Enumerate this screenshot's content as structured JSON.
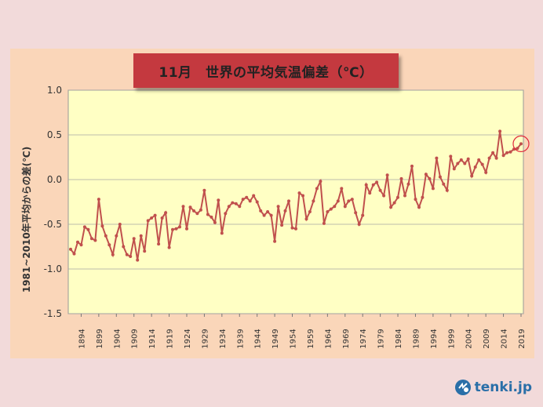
{
  "title": "11月　世界の平均気温偏差（℃）",
  "logo_text": "tenki.jp",
  "colors": {
    "plot_bg": "#ffffc4",
    "line": "#c0504d",
    "grid": "#a6a6a6",
    "highlight": "#e0283c"
  },
  "chart_data": {
    "type": "line",
    "title": "11月　世界の平均気温偏差（℃）",
    "ylabel": "1981~2010年平均からの差(℃)",
    "xlabel": "",
    "ylim": [
      -1.5,
      1.0
    ],
    "yticks": [
      "1.0",
      "0.5",
      "0.0",
      "-0.5",
      "-1.0",
      "-1.5"
    ],
    "xticks": [
      "1894",
      "1899",
      "1904",
      "1909",
      "1914",
      "1919",
      "1924",
      "1929",
      "1934",
      "1939",
      "1944",
      "1949",
      "1954",
      "1959",
      "1964",
      "1969",
      "1974",
      "1979",
      "1984",
      "1989",
      "1994",
      "1999",
      "2004",
      "2009",
      "2014",
      "2019"
    ],
    "grid": true,
    "highlight_year": 2019,
    "x_start": 1891,
    "x_end": 2019,
    "values": [
      -0.78,
      -0.83,
      -0.7,
      -0.73,
      -0.53,
      -0.56,
      -0.66,
      -0.68,
      -0.22,
      -0.52,
      -0.63,
      -0.73,
      -0.84,
      -0.63,
      -0.5,
      -0.75,
      -0.84,
      -0.86,
      -0.66,
      -0.9,
      -0.63,
      -0.8,
      -0.46,
      -0.43,
      -0.4,
      -0.72,
      -0.43,
      -0.37,
      -0.76,
      -0.56,
      -0.55,
      -0.53,
      -0.3,
      -0.55,
      -0.31,
      -0.35,
      -0.38,
      -0.34,
      -0.12,
      -0.39,
      -0.42,
      -0.48,
      -0.23,
      -0.6,
      -0.38,
      -0.3,
      -0.26,
      -0.27,
      -0.3,
      -0.22,
      -0.2,
      -0.24,
      -0.18,
      -0.25,
      -0.35,
      -0.4,
      -0.36,
      -0.4,
      -0.69,
      -0.3,
      -0.51,
      -0.35,
      -0.24,
      -0.54,
      -0.55,
      -0.15,
      -0.18,
      -0.44,
      -0.36,
      -0.24,
      -0.1,
      -0.02,
      -0.49,
      -0.36,
      -0.33,
      -0.3,
      -0.24,
      -0.1,
      -0.3,
      -0.24,
      -0.22,
      -0.37,
      -0.5,
      -0.4,
      -0.06,
      -0.15,
      -0.06,
      -0.03,
      -0.12,
      -0.18,
      0.05,
      -0.31,
      -0.26,
      -0.2,
      0.01,
      -0.18,
      -0.05,
      0.15,
      -0.22,
      -0.31,
      -0.2,
      0.06,
      0.01,
      -0.1,
      0.24,
      0.03,
      -0.05,
      -0.12,
      0.26,
      0.12,
      0.18,
      0.22,
      0.18,
      0.23,
      0.04,
      0.14,
      0.22,
      0.17,
      0.08,
      0.24,
      0.3,
      0.24,
      0.54,
      0.27,
      0.3,
      0.31,
      0.34,
      0.35,
      0.4
    ]
  }
}
